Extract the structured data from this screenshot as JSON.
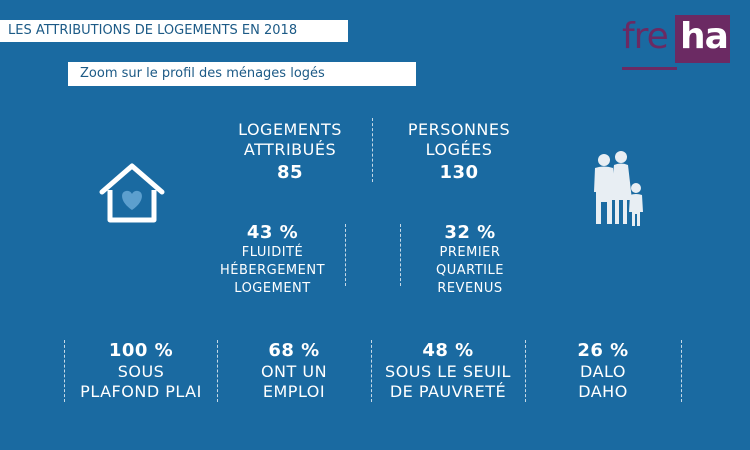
{
  "header": {
    "title": "LES ATTRIBUTIONS DE LOGEMENTS EN 2018",
    "subtitle": "Zoom sur le profil des ménages logés"
  },
  "logo": {
    "part1": "fre",
    "part2": "ha"
  },
  "stats_top": [
    {
      "label_lines": [
        "LOGEMENTS",
        "ATTRIBUÉS"
      ],
      "value": "85"
    },
    {
      "label_lines": [
        "PERSONNES",
        "LOGÉES"
      ],
      "value": "130"
    }
  ],
  "stats_middle": [
    {
      "value": "43 %",
      "label_lines": [
        "FLUIDITÉ",
        "HÉBERGEMENT",
        "LOGEMENT"
      ]
    },
    {
      "value": "32 %",
      "label_lines": [
        "PREMIER",
        "QUARTILE",
        "REVENUS"
      ]
    }
  ],
  "stats_bottom": [
    {
      "value": "100 %",
      "label_lines": [
        "SOUS",
        "PLAFOND PLAI"
      ]
    },
    {
      "value": "68 %",
      "label_lines": [
        "ONT UN",
        "EMPLOI"
      ]
    },
    {
      "value": "48 %",
      "label_lines": [
        "SOUS LE SEUIL",
        "DE PAUVRETÉ"
      ]
    },
    {
      "value": "26 %",
      "label_lines": [
        "DALO",
        "DAHO"
      ]
    }
  ],
  "colors": {
    "background": "#1a6aa1",
    "banner_text": "#1c5a86",
    "logo_purple": "#6b2a63",
    "heart": "#5c9fce",
    "people": "#e8eef3"
  },
  "icons": {
    "left": "house-heart-icon",
    "right": "family-icon"
  }
}
